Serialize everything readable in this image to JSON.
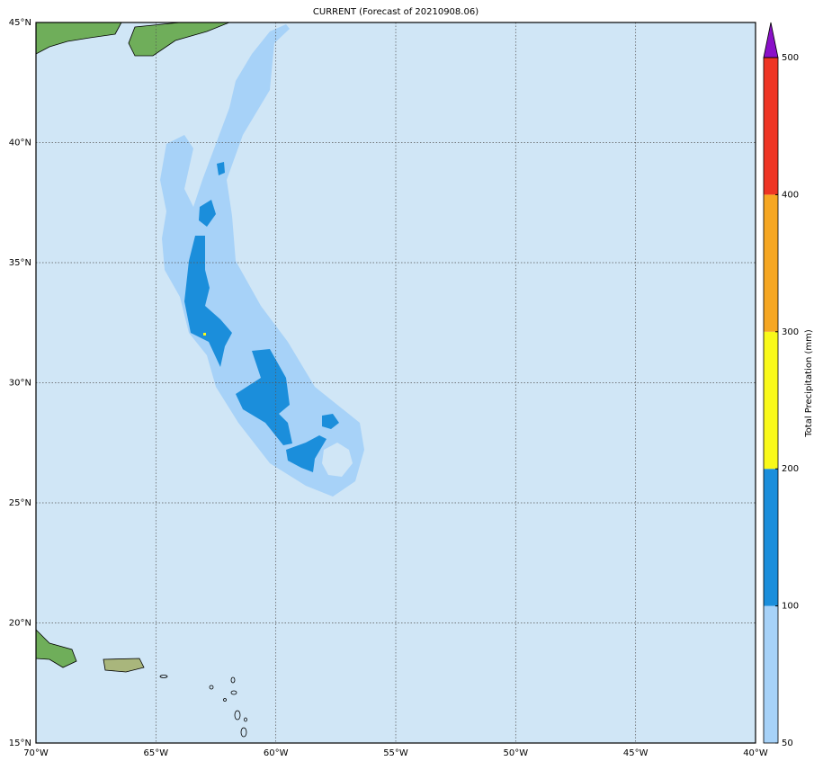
{
  "title": "CURRENT (Forecast of 20210908.06)",
  "lat_labels": [
    "45°N",
    "40°N",
    "35°N",
    "30°N",
    "25°N",
    "20°N",
    "15°N"
  ],
  "lon_labels": [
    "70°W",
    "65°W",
    "60°W",
    "55°W",
    "50°W",
    "45°W",
    "40°W"
  ],
  "colorbar": {
    "label": "Total Precipitation (mm)",
    "ticks": [
      50,
      100,
      200,
      300,
      400,
      500
    ],
    "colors": [
      "#a7d2f8",
      "#1b8edb",
      "#f9f91a",
      "#f6a723",
      "#ee3524"
    ],
    "extend_color": "#8a10c8"
  }
}
